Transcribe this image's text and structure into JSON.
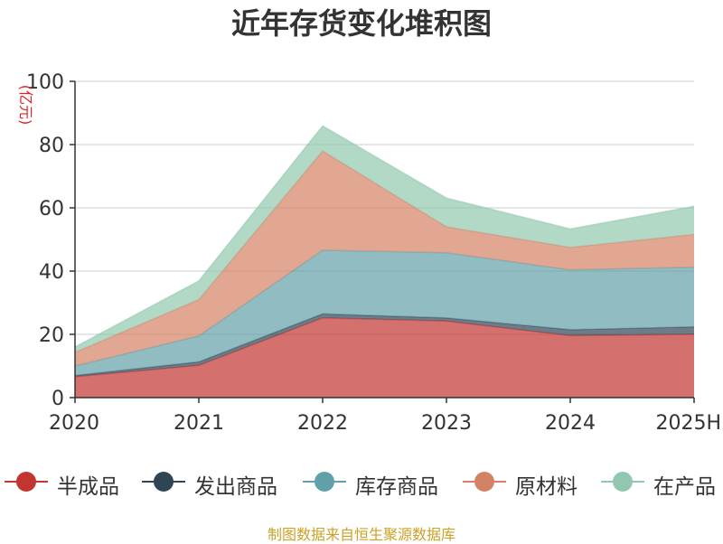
{
  "chart_data": {
    "type": "area",
    "title": "近年存货变化堆积图",
    "ylabel": "(亿元)",
    "ylim": [
      0,
      100
    ],
    "yticks": [
      0,
      20,
      40,
      60,
      80,
      100
    ],
    "stacked": true,
    "grid": true,
    "legend_position": "bottom",
    "categories": [
      "2020",
      "2021",
      "2022",
      "2023",
      "2024",
      "2025H"
    ],
    "series": [
      {
        "name": "半成品",
        "color": "#c23531",
        "values": [
          6.6,
          10.2,
          25.2,
          24.2,
          19.6,
          20.0
        ]
      },
      {
        "name": "发出商品",
        "color": "#2f4554",
        "values": [
          0.4,
          1.1,
          1.3,
          1.0,
          1.9,
          2.4
        ]
      },
      {
        "name": "库存商品",
        "color": "#61a0a8",
        "values": [
          3.0,
          8.2,
          20.1,
          20.6,
          18.9,
          18.8
        ]
      },
      {
        "name": "原材料",
        "color": "#d48265",
        "values": [
          4.3,
          11.5,
          31.4,
          8.2,
          7.1,
          10.4
        ]
      },
      {
        "name": "在产品",
        "color": "#91c7ae",
        "values": [
          1.7,
          5.9,
          7.9,
          9.1,
          5.8,
          8.9
        ]
      }
    ]
  },
  "source_text": "制图数据来自恒生聚源数据库"
}
